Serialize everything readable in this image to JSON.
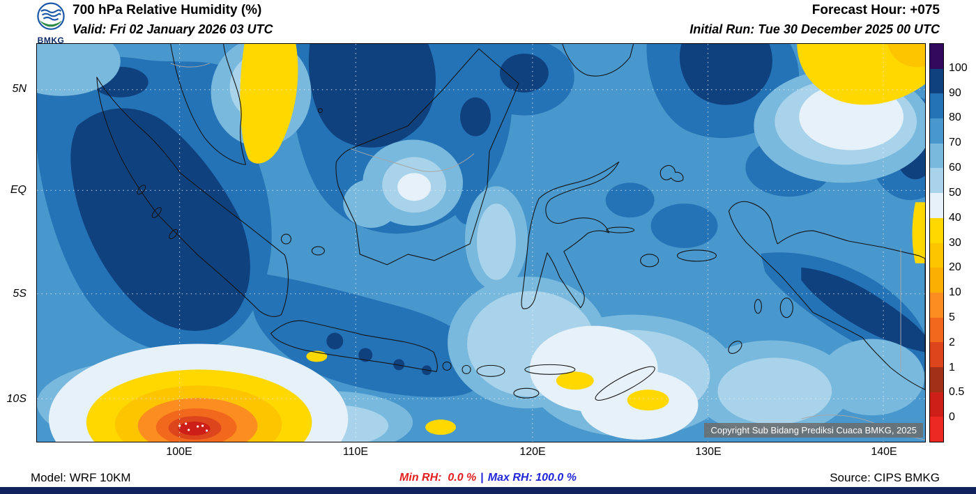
{
  "header": {
    "logo_text": "BMKG",
    "title": "700 hPa Relative Humidity (%)",
    "valid": "Valid: Fri 02 January 2026 03 UTC",
    "forecast_hour": "Forecast Hour: +075",
    "initial_run": "Initial Run: Tue 30 December 2025 00 UTC"
  },
  "map": {
    "copyright": "Copyright Sub Bidang Prediksi Cuaca BMKG, 2025",
    "lat_ticks": [
      "5N",
      "EQ",
      "5S",
      "10S"
    ],
    "lon_ticks": [
      "100E",
      "110E",
      "120E",
      "130E",
      "140E"
    ]
  },
  "colorbar": {
    "labels": [
      "100",
      "90",
      "80",
      "70",
      "60",
      "50",
      "40",
      "30",
      "20",
      "10",
      "5",
      "2",
      "1",
      "0.5",
      "0"
    ],
    "colors": [
      "#33095e",
      "#10417f",
      "#2473b6",
      "#4897cd",
      "#7ab9de",
      "#a9d3ea",
      "#e7f1f9",
      "#ffd800",
      "#fdc500",
      "#fcaf03",
      "#fb8d21",
      "#f2691d",
      "#dd451c",
      "#a23018",
      "#cd1e17",
      "#ec2a23"
    ]
  },
  "footer": {
    "model": "Model: WRF 10KM",
    "min_rh": "Min RH:  0.0 %",
    "separator": "|",
    "max_rh": "Max RH: 100.0 %",
    "source": "Source: CIPS BMKG",
    "min_color": "#e31e1e",
    "max_color": "#2026d8"
  },
  "chart_data": {
    "type": "heatmap",
    "title": "700 hPa Relative Humidity (%)",
    "valid": "Fri 02 January 2026 03 UTC",
    "initial_run": "Tue 30 December 2025 00 UTC",
    "forecast_hour": "+075",
    "model": "WRF 10KM",
    "source": "CIPS BMKG",
    "region": "Indonesia",
    "x_ticks": [
      "100E",
      "110E",
      "120E",
      "130E",
      "140E"
    ],
    "y_ticks": [
      "5N",
      "EQ",
      "5S",
      "10S"
    ],
    "colorbar_levels": [
      100,
      90,
      80,
      70,
      60,
      50,
      40,
      30,
      20,
      10,
      5,
      2,
      1,
      0.5,
      0
    ],
    "colorbar_colors": [
      "#33095e",
      "#10417f",
      "#2473b6",
      "#4897cd",
      "#7ab9de",
      "#a9d3ea",
      "#e7f1f9",
      "#ffd800",
      "#fdc500",
      "#fcaf03",
      "#fb8d21",
      "#f2691d",
      "#dd451c",
      "#a23018",
      "#cd1e17",
      "#ec2a23"
    ],
    "min_rh_percent": 0.0,
    "max_rh_percent": 100.0,
    "legend_position": "right",
    "grid": true,
    "notable_features": [
      {
        "feature": "very low RH bullseye (0-10%)",
        "location": "southwest of Java, near 101E 11S"
      },
      {
        "feature": "high RH (90-100%)",
        "location": "Sumatra, north Borneo, Papua highlands, NW Pacific"
      },
      {
        "feature": "low RH (30-40%)",
        "location": "NE corner near 137-142E 5-7N and map west edge 103E 7N"
      }
    ]
  }
}
